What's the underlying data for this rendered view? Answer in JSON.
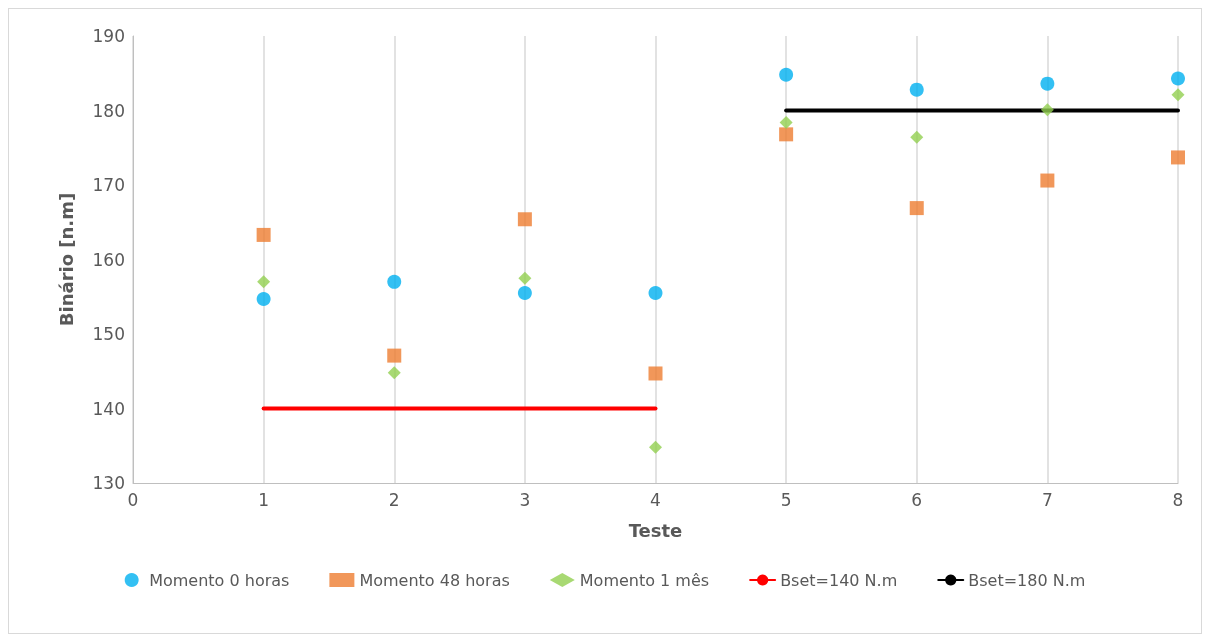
{
  "chart_data": {
    "type": "scatter",
    "xlabel": "Teste",
    "ylabel": "Binário [n.m]",
    "xlim": [
      0,
      8
    ],
    "xticks": [
      0,
      1,
      2,
      3,
      4,
      5,
      6,
      7,
      8
    ],
    "ylim": [
      130,
      190
    ],
    "yticks": [
      130,
      140,
      150,
      160,
      170,
      180,
      190
    ],
    "grid": "x",
    "legend": "bottom",
    "x": [
      1,
      2,
      3,
      4,
      5,
      6,
      7,
      8
    ],
    "series": [
      {
        "name": "Momento 0 horas",
        "color": "#00b0f0",
        "marker": "circle",
        "values": [
          154.7,
          157.0,
          155.5,
          155.5,
          184.8,
          182.8,
          183.6,
          184.3
        ]
      },
      {
        "name": "Momento 48 horas",
        "color": "#ed7d31",
        "marker": "square",
        "values": [
          163.3,
          147.1,
          165.4,
          144.7,
          176.8,
          166.9,
          170.6,
          173.7
        ]
      },
      {
        "name": "Momento 1 mês",
        "color": "#92d050",
        "marker": "diamond",
        "values": [
          157.0,
          144.8,
          157.5,
          134.8,
          178.4,
          176.4,
          180.1,
          182.1
        ]
      },
      {
        "name": "Bset=140 N.m",
        "type": "line",
        "color": "#ff0000",
        "marker": "none",
        "line_style": "solid",
        "x": [
          1,
          4
        ],
        "values": [
          140,
          140
        ]
      },
      {
        "name": "Bset=180 N.m",
        "type": "line",
        "color": "#000000",
        "marker": "none",
        "line_style": "solid",
        "x": [
          5,
          8
        ],
        "values": [
          180,
          180
        ]
      }
    ]
  }
}
